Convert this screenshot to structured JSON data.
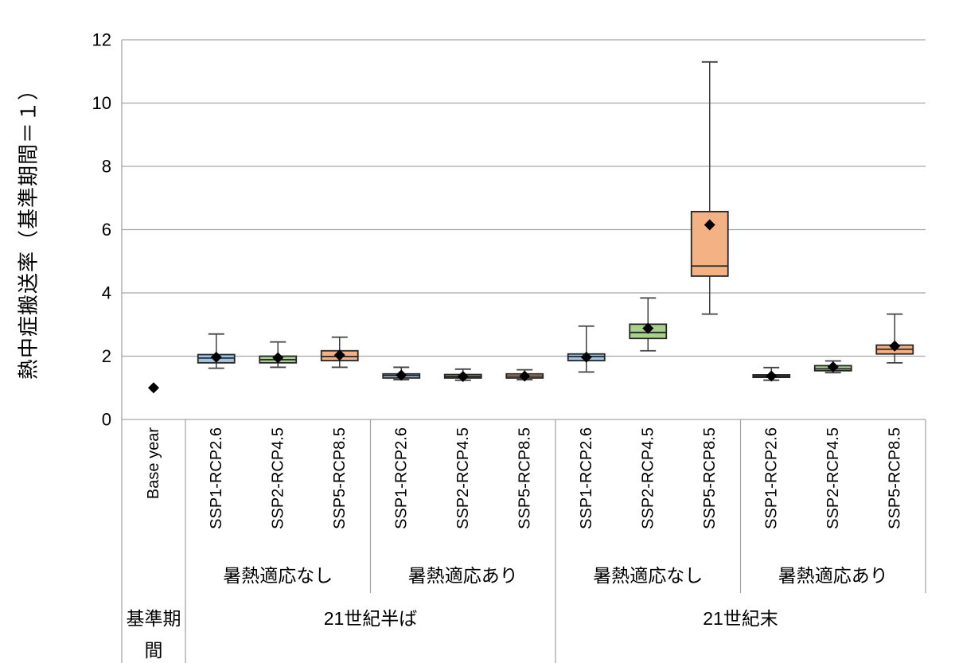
{
  "chart_data": {
    "type": "box",
    "title": "",
    "ylabel": "熱中症搬送率（基準期間＝１）",
    "xlabel": "",
    "ylim": [
      0,
      12
    ],
    "yticks": [
      0,
      2,
      4,
      6,
      8,
      10,
      12
    ],
    "grid": true,
    "legend": "none",
    "mean_marker": "black-diamond",
    "colors": {
      "rcp26_fill": "#9DC3E6",
      "rcp45_fill": "#A9D18E",
      "rcp85_fill": "#F4B183",
      "box_border": "#262626",
      "whisker": "#404040",
      "grid": "#A6A6A6",
      "text": "#000000"
    },
    "categories": [
      "Base year",
      "SSP1-RCP2.6",
      "SSP2-RCP4.5",
      "SSP5-RCP8.5",
      "SSP1-RCP2.6",
      "SSP2-RCP4.5",
      "SSP5-RCP8.5",
      "SSP1-RCP2.6",
      "SSP2-RCP4.5",
      "SSP5-RCP8.5",
      "SSP1-RCP2.6",
      "SSP2-RCP4.5",
      "SSP5-RCP8.5"
    ],
    "boxes": [
      {
        "label": "Base year",
        "mean": 1.0
      },
      {
        "label": "SSP1-RCP2.6",
        "low": 1.62,
        "q1": 1.79,
        "median": 1.94,
        "q3": 2.05,
        "high": 2.7,
        "mean": 1.97,
        "fill": "#9DC3E6"
      },
      {
        "label": "SSP2-RCP4.5",
        "low": 1.65,
        "q1": 1.79,
        "median": 1.89,
        "q3": 2.0,
        "high": 2.45,
        "mean": 1.95,
        "fill": "#A9D18E"
      },
      {
        "label": "SSP5-RCP8.5",
        "low": 1.65,
        "q1": 1.86,
        "median": 1.99,
        "q3": 2.17,
        "high": 2.6,
        "mean": 2.03,
        "fill": "#F4B183"
      },
      {
        "label": "SSP1-RCP2.6",
        "low": 1.26,
        "q1": 1.31,
        "median": 1.39,
        "q3": 1.44,
        "high": 1.65,
        "mean": 1.4,
        "fill": "#9DC3E6"
      },
      {
        "label": "SSP2-RCP4.5",
        "low": 1.24,
        "q1": 1.31,
        "median": 1.36,
        "q3": 1.42,
        "high": 1.59,
        "mean": 1.36,
        "fill": "#A9D18E"
      },
      {
        "label": "SSP5-RCP8.5",
        "low": 1.26,
        "q1": 1.31,
        "median": 1.37,
        "q3": 1.44,
        "high": 1.57,
        "mean": 1.37,
        "fill": "#F4B183"
      },
      {
        "label": "SSP1-RCP2.6",
        "low": 1.5,
        "q1": 1.86,
        "median": 1.99,
        "q3": 2.07,
        "high": 2.95,
        "mean": 1.97,
        "fill": "#9DC3E6"
      },
      {
        "label": "SSP2-RCP4.5",
        "low": 2.17,
        "q1": 2.56,
        "median": 2.75,
        "q3": 3.01,
        "high": 3.84,
        "mean": 2.88,
        "fill": "#A9D18E"
      },
      {
        "label": "SSP5-RCP8.5",
        "low": 3.33,
        "q1": 4.53,
        "median": 4.85,
        "q3": 6.57,
        "high": 11.3,
        "mean": 6.15,
        "fill": "#F4B183"
      },
      {
        "label": "SSP1-RCP2.6",
        "low": 1.24,
        "q1": 1.33,
        "median": 1.37,
        "q3": 1.41,
        "high": 1.64,
        "mean": 1.37,
        "fill": "#9DC3E6"
      },
      {
        "label": "SSP2-RCP4.5",
        "low": 1.48,
        "q1": 1.54,
        "median": 1.6,
        "q3": 1.7,
        "high": 1.85,
        "mean": 1.66,
        "fill": "#A9D18E"
      },
      {
        "label": "SSP5-RCP8.5",
        "low": 1.79,
        "q1": 2.07,
        "median": 2.22,
        "q3": 2.35,
        "high": 3.33,
        "mean": 2.32,
        "fill": "#F4B183"
      }
    ],
    "adaptation_groups": [
      {
        "label": "暑熱適応なし",
        "span": [
          1,
          3
        ]
      },
      {
        "label": "暑熱適応あり",
        "span": [
          4,
          6
        ]
      },
      {
        "label": "暑熱適応なし",
        "span": [
          7,
          9
        ]
      },
      {
        "label": "暑熱適応あり",
        "span": [
          10,
          12
        ]
      }
    ],
    "period_groups": [
      {
        "label": "基準期間",
        "span": [
          0,
          0
        ],
        "wrap": 3
      },
      {
        "label": "21世紀半ば",
        "span": [
          1,
          6
        ]
      },
      {
        "label": "21世紀末",
        "span": [
          7,
          12
        ]
      }
    ]
  }
}
